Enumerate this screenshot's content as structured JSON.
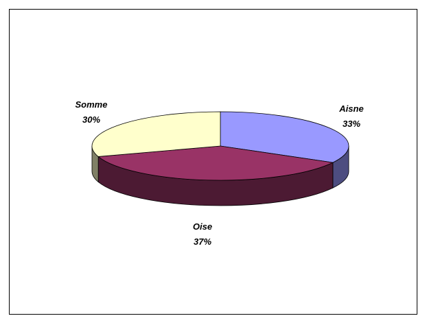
{
  "chart_data": {
    "type": "pie",
    "style": "3d-tilted",
    "title": "",
    "slices": [
      {
        "category": "Aisne",
        "value": 33,
        "label": "33%",
        "color": "#9999ff",
        "side_color": "#4d4d80"
      },
      {
        "category": "Oise",
        "value": 37,
        "label": "37%",
        "color": "#993366",
        "side_color": "#4c1a33"
      },
      {
        "category": "Somme",
        "value": 30,
        "label": "30%",
        "color": "#ffffcc",
        "side_color": "#808066"
      }
    ],
    "legend": "none",
    "start_angle_deg": 90,
    "direction": "clockwise"
  }
}
